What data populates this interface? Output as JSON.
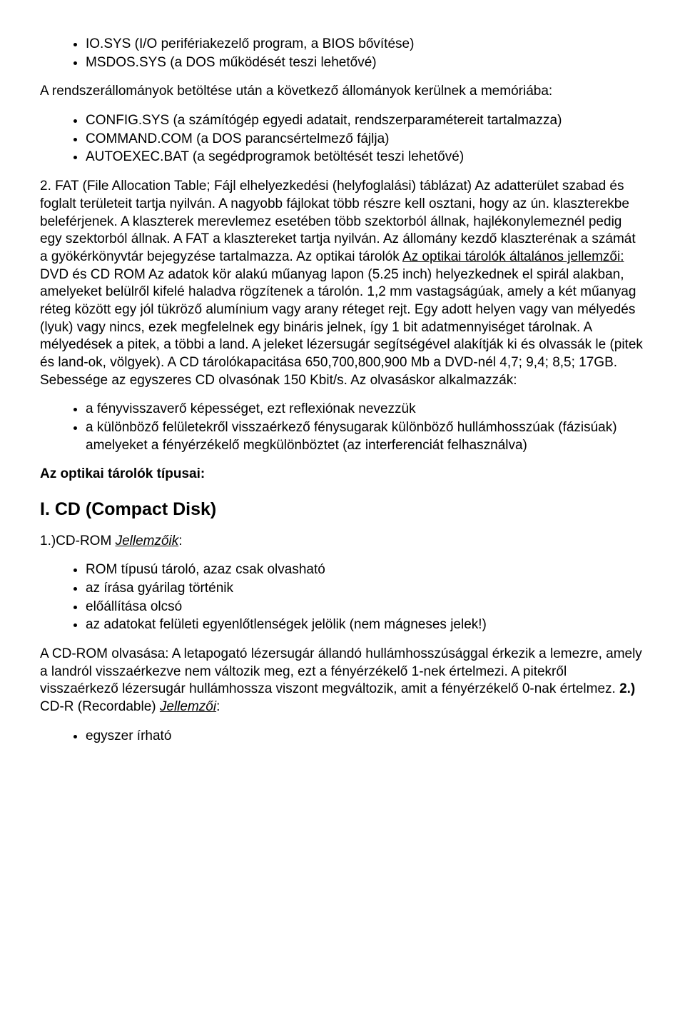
{
  "list1": {
    "items": [
      "IO.SYS (I/O perifériakezelő program, a BIOS bővítése)",
      "MSDOS.SYS (a DOS működését teszi lehetővé)"
    ]
  },
  "para1": "A rendszerállományok betöltése után a következő állományok kerülnek a memóriába:",
  "list2": {
    "items": [
      "CONFIG.SYS (a számítógép egyedi adatait, rendszerparamétereit tartalmazza)",
      "COMMAND.COM (a DOS parancsértelmező fájlja)",
      "AUTOEXEC.BAT (a segédprogramok betöltését teszi lehetővé)"
    ]
  },
  "para2": {
    "p1": "2. FAT (File Allocation Table; Fájl elhelyezkedési (helyfoglalási) táblázat) Az adatterület szabad és foglalt területeit tartja nyilván. A nagyobb fájlokat több részre kell osztani, hogy az ún. klaszterekbe beleférjenek. A klaszterek merevlemez esetében több szektorból állnak, hajlékonylemeznél pedig egy szektorból állnak. A FAT a klasztereket tartja nyilván. Az állomány kezdő klaszterénak a számát a gyökérkönyvtár bejegyzése tartalmazza. Az optikai tárolók ",
    "u1": "Az optikai tárolók általános jellemzői:",
    "p2": " DVD és CD ROM Az adatok kör alakú műanyag lapon (5.25 inch) helyezkednek el spirál alakban, amelyeket belülről kifelé haladva rögzítenek a tárolón. 1,2 mm vastagságúak, amely a két műanyag réteg között egy jól tükröző alumínium vagy arany réteget rejt. Egy adott helyen vagy van mélyedés (lyuk) vagy nincs, ezek megfelelnek egy bináris jelnek, így 1 bit adatmennyiséget tárolnak. A mélyedések a pitek, a többi a land. A jeleket lézersugár segítségével alakítják ki és olvassák le (pitek és land-ok, völgyek). A CD tárolókapacitása 650,700,800,900 Mb a DVD-nél 4,7; 9,4; 8,5; 17GB. Sebessége az egyszeres CD olvasónak 150 Kbit/s. Az olvasáskor alkalmazzák:"
  },
  "list3": {
    "items": [
      "a fényvisszaverő képességet, ezt reflexiónak nevezzük",
      "a különböző felületekről visszaérkező fénysugarak különböző hullámhosszúak (fázisúak) amelyeket a fényérzékelő megkülönböztet (az interferenciát felhasználva)"
    ]
  },
  "heading1": "Az optikai tárolók típusai:",
  "heading2": "I. CD (Compact Disk)",
  "para3": {
    "p1": "1.)CD-ROM ",
    "u1": "Jellemzőik",
    "p2": ":"
  },
  "list4": {
    "items": [
      "ROM típusú tároló, azaz csak olvasható",
      "az írása gyárilag történik",
      "előállítása olcsó",
      "az adatokat felületi egyenlőtlenségek jelölik (nem mágneses jelek!)"
    ]
  },
  "para4": {
    "p1": "A CD-ROM olvasása: A letapogató lézersugár állandó hullámhosszúsággal érkezik a lemezre, amely a landról visszaérkezve nem változik meg, ezt a fényérzékelő 1-nek értelmezi. A pitekről visszaérkező lézersugár hullámhossza viszont megváltozik, amit a fényérzékelő 0-nak értelmez. ",
    "b1": "2.)",
    "p2": " CD-R (Recordable) ",
    "u1": "Jellemzői",
    "p3": ":"
  },
  "list5": {
    "items": [
      "egyszer írható"
    ]
  }
}
